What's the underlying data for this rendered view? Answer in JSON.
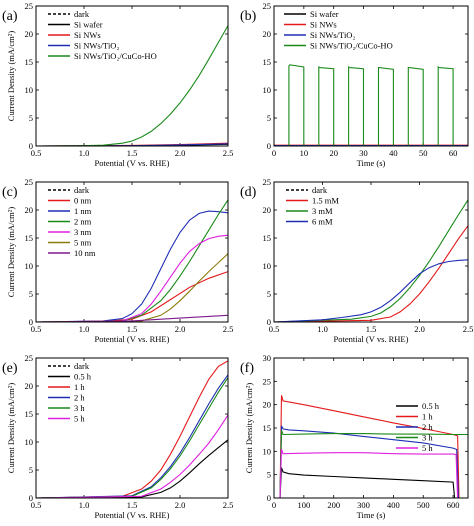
{
  "figure": {
    "panels": [
      {
        "id": "a",
        "label": "(a)",
        "xlabel": "Potential (V vs. RHE)",
        "ylabel": "Current Density (mA/cm²)",
        "xticks": [
          "0.5",
          "1.0",
          "1.5",
          "2.0",
          "2.5"
        ],
        "yticks": [
          "0",
          "5",
          "10",
          "15",
          "20",
          "25"
        ],
        "legend": [
          "dark",
          "Si wafer",
          "Si NWs",
          "Si NWs/TiO₂",
          "Si NWs/TiO₂/CuCo-HO"
        ]
      },
      {
        "id": "b",
        "label": "(b)",
        "xlabel": "Time (s)",
        "ylabel": "",
        "xticks": [
          "0",
          "10",
          "20",
          "30",
          "40",
          "50",
          "60"
        ],
        "yticks": [
          "0",
          "5",
          "10",
          "15",
          "20",
          "25"
        ],
        "legend": [
          "Si wafer",
          "Si NWs",
          "Si NWs/TiO₂",
          "Si NWs/TiO₂/CuCo-HO"
        ]
      },
      {
        "id": "c",
        "label": "(c)",
        "xlabel": "Potential (V vs. RHE)",
        "ylabel": "Current Density (mA/cm²)",
        "xticks": [
          "0.5",
          "1.0",
          "1.5",
          "2.0",
          "2.5"
        ],
        "yticks": [
          "0",
          "5",
          "10",
          "15",
          "20",
          "25"
        ],
        "legend": [
          "dark",
          "0 nm",
          "1 nm",
          "2 nm",
          "3 nm",
          "5 nm",
          "10 nm"
        ]
      },
      {
        "id": "d",
        "label": "(d)",
        "xlabel": "Potential (V vs. RHE)",
        "ylabel": "",
        "xticks": [
          "0.5",
          "1.0",
          "1.5",
          "2.0",
          "2.5"
        ],
        "yticks": [
          "0",
          "5",
          "10",
          "15",
          "20",
          "25"
        ],
        "legend": [
          "dark",
          "1.5 mM",
          "3 mM",
          "6 mM"
        ]
      },
      {
        "id": "e",
        "label": "(e)",
        "xlabel": "Potential (V vs. RHE)",
        "ylabel": "Current Density (mA/cm²)",
        "xticks": [
          "0.5",
          "1.0",
          "1.5",
          "2.0",
          "2.5"
        ],
        "yticks": [
          "0",
          "5",
          "10",
          "15",
          "20",
          "25"
        ],
        "legend": [
          "dark",
          "0.5 h",
          "1 h",
          "2 h",
          "3 h",
          "5 h"
        ]
      },
      {
        "id": "f",
        "label": "(f)",
        "xlabel": "Time (s)",
        "ylabel": "Current Density (mA/cm²)",
        "xticks": [
          "0",
          "100",
          "200",
          "300",
          "400",
          "500",
          "600"
        ],
        "yticks": [
          "0",
          "5",
          "10",
          "15",
          "20",
          "25",
          "30"
        ],
        "legend": [
          "0.5 h",
          "1 h",
          "2 h",
          "3 h",
          "5 h"
        ]
      }
    ]
  },
  "colors": {
    "black": "#000000",
    "red": "#e41a1c",
    "green": "#1a8a1a",
    "blue": "#1f2fb4",
    "magenta": "#e020e0",
    "olive": "#8b7d0b",
    "purple": "#7b1a8b"
  },
  "chart_data": [
    {
      "type": "line",
      "panel": "a",
      "xlim": [
        0.5,
        2.5
      ],
      "ylim": [
        0,
        25
      ],
      "series": [
        {
          "name": "dark",
          "color": "black",
          "dashed": true,
          "x": [
            0.5,
            2.5
          ],
          "y": [
            0,
            0
          ]
        },
        {
          "name": "Si wafer",
          "color": "black",
          "x": [
            0.5,
            1.5,
            2.0,
            2.5
          ],
          "y": [
            0,
            0.05,
            0.15,
            0.3
          ]
        },
        {
          "name": "Si NWs",
          "color": "red",
          "x": [
            0.5,
            1.5,
            2.0,
            2.5
          ],
          "y": [
            0,
            0.1,
            0.25,
            0.5
          ]
        },
        {
          "name": "Si NWs/TiO₂",
          "color": "blue",
          "x": [
            0.5,
            1.5,
            2.0,
            2.5
          ],
          "y": [
            0,
            0.05,
            0.2,
            0.4
          ]
        },
        {
          "name": "Si NWs/TiO₂/CuCo-HO",
          "color": "green",
          "x": [
            0.5,
            1.0,
            1.2,
            1.4,
            1.5,
            1.6,
            1.7,
            1.8,
            1.9,
            2.0,
            2.1,
            2.2,
            2.3,
            2.4,
            2.5
          ],
          "y": [
            0,
            0.05,
            0.15,
            0.5,
            0.9,
            1.6,
            2.6,
            4.0,
            5.7,
            7.7,
            10.0,
            12.6,
            15.5,
            18.5,
            21.5
          ]
        }
      ]
    },
    {
      "type": "line",
      "panel": "b",
      "xlim": [
        0,
        65
      ],
      "ylim": [
        0,
        25
      ],
      "series": [
        {
          "name": "Si wafer",
          "color": "black",
          "x": [
            0,
            65
          ],
          "y": [
            0,
            0
          ]
        },
        {
          "name": "Si NWs",
          "color": "red",
          "x": [
            0,
            65
          ],
          "y": [
            0.15,
            0.15
          ]
        },
        {
          "name": "Si NWs/TiO₂",
          "color": "blue",
          "x": [
            0,
            65
          ],
          "y": [
            0.08,
            0.08
          ]
        },
        {
          "name": "Si NWs/TiO₂/CuCo-HO",
          "color": "green",
          "x": [
            0,
            5,
            5,
            5.3,
            10,
            10,
            15,
            15,
            15.3,
            20,
            20,
            25,
            25,
            25.3,
            30,
            30,
            35,
            35,
            35.3,
            40,
            40,
            45,
            45,
            45.3,
            50,
            50,
            55,
            55,
            55.3,
            60,
            60,
            65
          ],
          "y": [
            0,
            0,
            14.3,
            14.5,
            14.1,
            0,
            0,
            14.1,
            14.0,
            13.8,
            0,
            0,
            14.1,
            14.0,
            13.8,
            0,
            0,
            14.0,
            14.0,
            13.7,
            0,
            0,
            14.0,
            14.0,
            13.7,
            0,
            0,
            14.1,
            14.0,
            13.8,
            0,
            0
          ]
        }
      ]
    },
    {
      "type": "line",
      "panel": "c",
      "xlim": [
        0.5,
        2.5
      ],
      "ylim": [
        0,
        25
      ],
      "series": [
        {
          "name": "dark",
          "color": "black",
          "dashed": true,
          "x": [
            0.5,
            2.5
          ],
          "y": [
            0,
            0
          ]
        },
        {
          "name": "0 nm",
          "color": "red",
          "x": [
            0.5,
            1.2,
            1.5,
            1.7,
            1.9,
            2.1,
            2.3,
            2.5
          ],
          "y": [
            0,
            0.1,
            0.5,
            1.8,
            4.0,
            6.2,
            7.8,
            9.0
          ]
        },
        {
          "name": "1 nm",
          "color": "blue",
          "x": [
            0.5,
            1.2,
            1.4,
            1.5,
            1.6,
            1.7,
            1.8,
            1.9,
            2.0,
            2.1,
            2.2,
            2.3,
            2.4,
            2.5
          ],
          "y": [
            0,
            0.2,
            0.6,
            1.5,
            3.2,
            6.0,
            9.5,
            13.0,
            16.0,
            18.2,
            19.4,
            19.8,
            19.7,
            19.5
          ]
        },
        {
          "name": "2 nm",
          "color": "green",
          "x": [
            0.5,
            1.4,
            1.6,
            1.8,
            1.9,
            2.0,
            2.1,
            2.2,
            2.3,
            2.4,
            2.5
          ],
          "y": [
            0,
            0.2,
            1.2,
            3.8,
            5.8,
            8.2,
            10.8,
            13.6,
            16.4,
            19.2,
            21.8
          ]
        },
        {
          "name": "3 nm",
          "color": "magenta",
          "x": [
            0.5,
            1.4,
            1.6,
            1.7,
            1.8,
            1.9,
            2.0,
            2.1,
            2.2,
            2.3,
            2.4,
            2.5
          ],
          "y": [
            0,
            0.2,
            1.5,
            3.2,
            5.5,
            8.0,
            10.5,
            12.6,
            14.0,
            14.9,
            15.3,
            15.5
          ]
        },
        {
          "name": "5 nm",
          "color": "olive",
          "x": [
            0.5,
            1.6,
            1.8,
            1.9,
            2.0,
            2.1,
            2.2,
            2.3,
            2.4,
            2.5
          ],
          "y": [
            0,
            0.2,
            1.2,
            2.3,
            3.8,
            5.5,
            7.3,
            9.0,
            10.6,
            12.2
          ]
        },
        {
          "name": "10 nm",
          "color": "purple",
          "x": [
            0.5,
            1.5,
            2.0,
            2.5
          ],
          "y": [
            0,
            0.2,
            0.7,
            1.2
          ]
        }
      ]
    },
    {
      "type": "line",
      "panel": "d",
      "xlim": [
        0.5,
        2.5
      ],
      "ylim": [
        0,
        25
      ],
      "series": [
        {
          "name": "dark",
          "color": "black",
          "dashed": true,
          "x": [
            0.5,
            2.5
          ],
          "y": [
            0,
            0
          ]
        },
        {
          "name": "1.5 mM",
          "color": "red",
          "x": [
            0.5,
            1.5,
            1.7,
            1.8,
            1.9,
            2.0,
            2.1,
            2.2,
            2.3,
            2.4,
            2.5
          ],
          "y": [
            0,
            0.3,
            0.9,
            1.8,
            3.2,
            5.0,
            7.2,
            9.6,
            12.2,
            14.8,
            17.2
          ]
        },
        {
          "name": "3 mM",
          "color": "green",
          "x": [
            0.5,
            1.3,
            1.5,
            1.6,
            1.7,
            1.8,
            1.9,
            2.0,
            2.1,
            2.2,
            2.3,
            2.4,
            2.5
          ],
          "y": [
            0,
            0.5,
            1.0,
            1.6,
            2.7,
            4.2,
            6.1,
            8.3,
            10.8,
            13.5,
            16.3,
            19.1,
            21.8
          ]
        },
        {
          "name": "6 mM",
          "color": "blue",
          "x": [
            0.5,
            1.0,
            1.2,
            1.4,
            1.5,
            1.6,
            1.7,
            1.8,
            1.9,
            2.0,
            2.1,
            2.2,
            2.3,
            2.4,
            2.5
          ],
          "y": [
            0,
            0.4,
            0.8,
            1.3,
            1.8,
            2.6,
            3.8,
            5.3,
            7.0,
            8.6,
            9.7,
            10.4,
            10.8,
            11.0,
            11.1
          ]
        }
      ]
    },
    {
      "type": "line",
      "panel": "e",
      "xlim": [
        0.5,
        2.5
      ],
      "ylim": [
        0,
        25
      ],
      "series": [
        {
          "name": "dark",
          "color": "black",
          "dashed": true,
          "x": [
            0.5,
            2.5
          ],
          "y": [
            0,
            0
          ]
        },
        {
          "name": "0.5 h",
          "color": "black",
          "x": [
            0.5,
            1.6,
            1.8,
            1.9,
            2.0,
            2.1,
            2.2,
            2.3,
            2.4,
            2.5
          ],
          "y": [
            0,
            0.2,
            1.0,
            1.8,
            3.0,
            4.5,
            6.1,
            7.6,
            9.0,
            10.4
          ]
        },
        {
          "name": "1 h",
          "color": "red",
          "x": [
            0.5,
            1.4,
            1.6,
            1.7,
            1.8,
            1.9,
            2.0,
            2.1,
            2.2,
            2.3,
            2.4,
            2.5
          ],
          "y": [
            0,
            0.3,
            1.6,
            3.0,
            5.0,
            7.8,
            11.0,
            14.5,
            18.0,
            21.2,
            23.5,
            24.5
          ]
        },
        {
          "name": "2 h",
          "color": "blue",
          "x": [
            0.5,
            1.5,
            1.7,
            1.8,
            1.9,
            2.0,
            2.1,
            2.2,
            2.3,
            2.4,
            2.5
          ],
          "y": [
            0,
            0.4,
            2.0,
            3.6,
            5.6,
            8.0,
            10.8,
            13.8,
            16.8,
            19.6,
            22.0
          ]
        },
        {
          "name": "3 h",
          "color": "green",
          "x": [
            0.5,
            1.5,
            1.7,
            1.8,
            1.9,
            2.0,
            2.1,
            2.2,
            2.3,
            2.4,
            2.5
          ],
          "y": [
            0,
            0.3,
            1.8,
            3.3,
            5.2,
            7.5,
            10.2,
            13.1,
            16.0,
            18.9,
            21.5
          ]
        },
        {
          "name": "5 h",
          "color": "magenta",
          "x": [
            0.5,
            1.6,
            1.8,
            1.9,
            2.0,
            2.1,
            2.2,
            2.3,
            2.4,
            2.5
          ],
          "y": [
            0,
            0.3,
            1.6,
            2.8,
            4.2,
            5.9,
            7.8,
            9.8,
            12.2,
            14.8
          ]
        }
      ]
    },
    {
      "type": "line",
      "panel": "f",
      "xlim": [
        0,
        650
      ],
      "ylim": [
        0,
        30
      ],
      "series": [
        {
          "name": "0.5 h",
          "color": "black",
          "x": [
            0,
            20,
            25,
            30,
            50,
            100,
            200,
            300,
            400,
            500,
            600,
            605,
            650
          ],
          "y": [
            0,
            0,
            6.5,
            5.6,
            5.2,
            4.9,
            4.6,
            4.3,
            4.0,
            3.7,
            3.4,
            0,
            0
          ]
        },
        {
          "name": "1 h",
          "color": "red",
          "x": [
            0,
            20,
            25,
            30,
            50,
            100,
            200,
            300,
            400,
            500,
            600,
            615,
            620,
            650
          ],
          "y": [
            0,
            0,
            22,
            20.8,
            20.6,
            20.0,
            18.7,
            17.4,
            16.1,
            14.9,
            13.6,
            13.3,
            0,
            0
          ]
        },
        {
          "name": "2 h",
          "color": "blue",
          "x": [
            0,
            20,
            25,
            30,
            50,
            100,
            200,
            300,
            400,
            500,
            600,
            612,
            618,
            650
          ],
          "y": [
            0,
            0,
            15.5,
            14.8,
            14.6,
            14.4,
            13.9,
            13.2,
            12.5,
            11.8,
            10.7,
            10.4,
            0,
            0
          ]
        },
        {
          "name": "3 h",
          "color": "green",
          "x": [
            0,
            20,
            25,
            30,
            100,
            200,
            300,
            400,
            500,
            600,
            630,
            650
          ],
          "y": [
            0,
            0,
            14.5,
            13.6,
            13.7,
            13.8,
            13.8,
            13.7,
            13.7,
            13.6,
            13.6,
            13.6
          ]
        },
        {
          "name": "5 h",
          "color": "magenta",
          "x": [
            0,
            20,
            25,
            30,
            100,
            200,
            300,
            400,
            500,
            600,
            610,
            615,
            650
          ],
          "y": [
            0,
            0,
            10.5,
            9.5,
            9.6,
            9.7,
            9.7,
            9.5,
            9.4,
            9.4,
            9.3,
            0,
            0
          ]
        }
      ]
    }
  ]
}
